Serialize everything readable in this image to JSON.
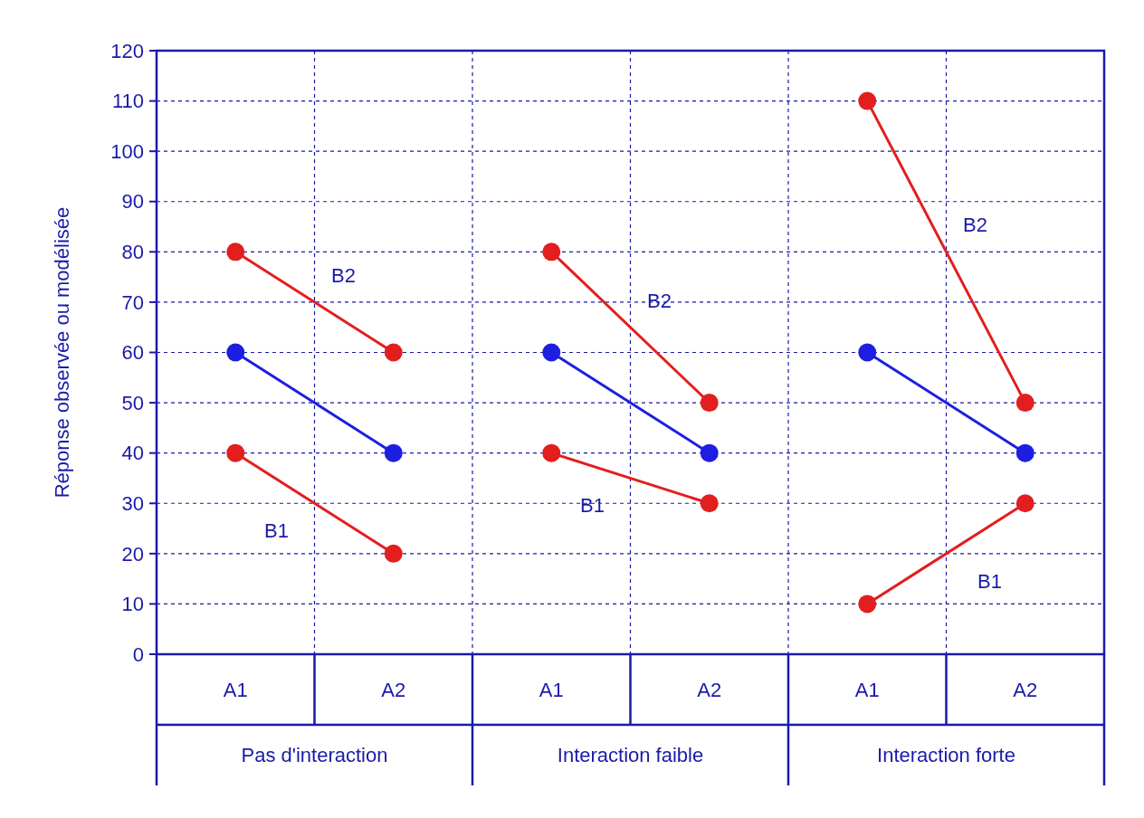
{
  "chart_data": {
    "type": "line",
    "ylabel": "Réponse observée ou modélisée",
    "categories": [
      "A1",
      "A2",
      "A1",
      "A2",
      "A1",
      "A2"
    ],
    "annotations": [
      "Pas d'interaction",
      "Interaction faible",
      "Interaction forte"
    ],
    "ylim": [
      0,
      120
    ],
    "yticks": [
      0,
      10,
      20,
      30,
      40,
      50,
      60,
      70,
      80,
      90,
      100,
      110,
      120
    ],
    "grid": true,
    "marker": "circle",
    "line_style": "solid",
    "series": [
      {
        "name": "B2",
        "color": "#e31e1e",
        "values": [
          80,
          60,
          null,
          null,
          null,
          null
        ]
      },
      {
        "color": "#1e1ee0",
        "values": [
          60,
          40,
          null,
          null,
          null,
          null
        ]
      },
      {
        "name": "B1",
        "color": "#e31e1e",
        "values": [
          40,
          20,
          null,
          null,
          null,
          null
        ]
      },
      {
        "name": "B2",
        "color": "#e31e1e",
        "values": [
          null,
          null,
          80,
          50,
          null,
          null
        ]
      },
      {
        "color": "#1e1ee0",
        "values": [
          null,
          null,
          60,
          40,
          null,
          null
        ]
      },
      {
        "name": "B1",
        "color": "#e31e1e",
        "values": [
          null,
          null,
          40,
          30,
          null,
          null
        ]
      },
      {
        "name": "B2",
        "color": "#e31e1e",
        "values": [
          null,
          null,
          null,
          null,
          110,
          50
        ]
      },
      {
        "color": "#1e1ee0",
        "values": [
          null,
          null,
          null,
          null,
          60,
          40
        ]
      },
      {
        "name": "B1",
        "color": "#e31e1e",
        "values": [
          null,
          null,
          null,
          null,
          10,
          30
        ]
      }
    ]
  }
}
